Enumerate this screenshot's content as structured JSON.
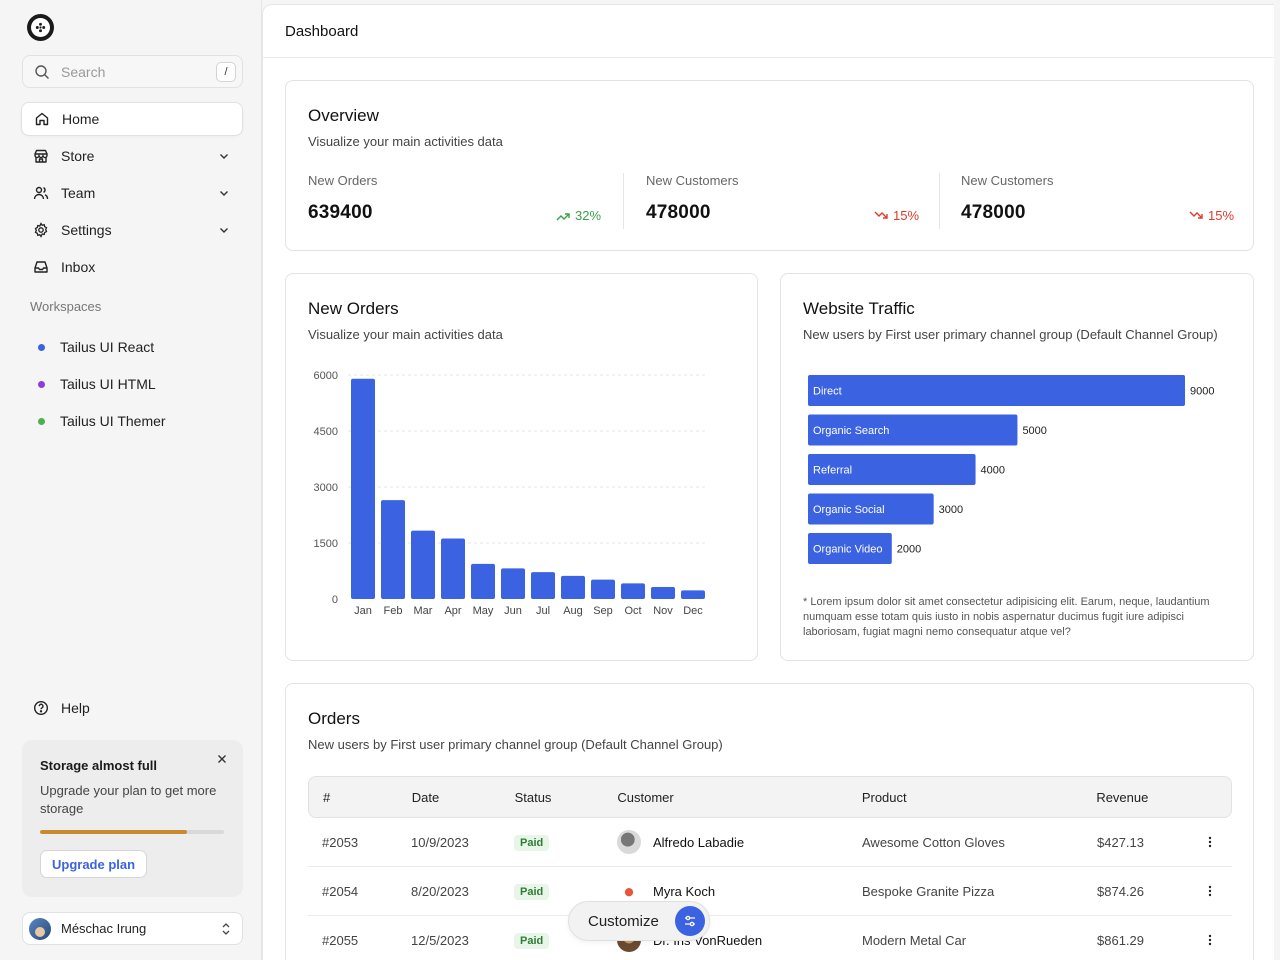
{
  "sidebar": {
    "search_placeholder": "Search",
    "search_shortcut": "/",
    "nav": [
      {
        "label": "Home",
        "icon": "home-icon",
        "active": true
      },
      {
        "label": "Store",
        "icon": "store-icon"
      },
      {
        "label": "Team",
        "icon": "team-icon"
      },
      {
        "label": "Settings",
        "icon": "settings-icon"
      },
      {
        "label": "Inbox",
        "icon": "inbox-icon"
      }
    ],
    "workspaces_label": "Workspaces",
    "workspaces": [
      {
        "label": "Tailus UI React",
        "color": "#3b62e0"
      },
      {
        "label": "Tailus UI HTML",
        "color": "#8b3fd9"
      },
      {
        "label": "Tailus UI Themer",
        "color": "#4caf50"
      }
    ],
    "help_label": "Help",
    "storage": {
      "title": "Storage almost full",
      "desc": "Upgrade your plan to get more storage",
      "progress": 0.8,
      "button": "Upgrade plan"
    },
    "user": {
      "name": "Méschac Irung"
    }
  },
  "topbar": {
    "title": "Dashboard"
  },
  "overview": {
    "title": "Overview",
    "subtitle": "Visualize your main activities data",
    "stats": [
      {
        "label": "New Orders",
        "value": "639400",
        "change": "32%",
        "trend": "up",
        "color": "#3aa04a"
      },
      {
        "label": "New Customers",
        "value": "478000",
        "change": "15%",
        "trend": "down",
        "color": "#e0392b"
      },
      {
        "label": "New Customers",
        "value": "478000",
        "change": "15%",
        "trend": "down",
        "color": "#e0392b"
      }
    ]
  },
  "new_orders": {
    "title": "New Orders",
    "subtitle": "Visualize your main activities data"
  },
  "traffic": {
    "title": "Website Traffic",
    "subtitle": "New users by First user primary channel group (Default Channel Group)",
    "note": "* Lorem ipsum dolor sit amet consectetur adipisicing elit. Earum, neque, laudantium numquam esse totam quis iusto in nobis aspernatur ducimus fugit iure adipisci laboriosam, fugiat magni nemo consequatur atque vel?"
  },
  "chart_data": [
    {
      "type": "bar",
      "categories": [
        "Jan",
        "Feb",
        "Mar",
        "Apr",
        "May",
        "Jun",
        "Jul",
        "Aug",
        "Sep",
        "Oct",
        "Nov",
        "Dec"
      ],
      "values": [
        5900,
        2650,
        1830,
        1620,
        940,
        820,
        720,
        620,
        520,
        420,
        320,
        230
      ],
      "yticks": [
        0,
        1500,
        3000,
        4500,
        6000
      ],
      "ylim": [
        0,
        6000
      ],
      "color": "#3b62e0",
      "grid": true
    },
    {
      "type": "bar",
      "orientation": "horizontal",
      "categories": [
        "Direct",
        "Organic Search",
        "Referral",
        "Organic Social",
        "Organic Video"
      ],
      "values": [
        9000,
        5000,
        4000,
        3000,
        2000
      ],
      "color": "#3b62e0"
    }
  ],
  "orders": {
    "title": "Orders",
    "subtitle": "New users by First user primary channel group (Default Channel Group)",
    "columns": [
      "#",
      "Date",
      "Status",
      "Customer",
      "Product",
      "Revenue"
    ],
    "rows": [
      {
        "id": "#2053",
        "date": "10/9/2023",
        "status": "Paid",
        "customer": "Alfredo Labadie",
        "product": "Awesome Cotton Gloves",
        "revenue": "$427.13"
      },
      {
        "id": "#2054",
        "date": "8/20/2023",
        "status": "Paid",
        "customer": "Myra Koch",
        "product": "Bespoke Granite Pizza",
        "revenue": "$874.26"
      },
      {
        "id": "#2055",
        "date": "12/5/2023",
        "status": "Paid",
        "customer": "Dr. Iris VonRueden",
        "product": "Modern Metal Car",
        "revenue": "$861.29"
      }
    ]
  },
  "customize": {
    "label": "Customize"
  }
}
